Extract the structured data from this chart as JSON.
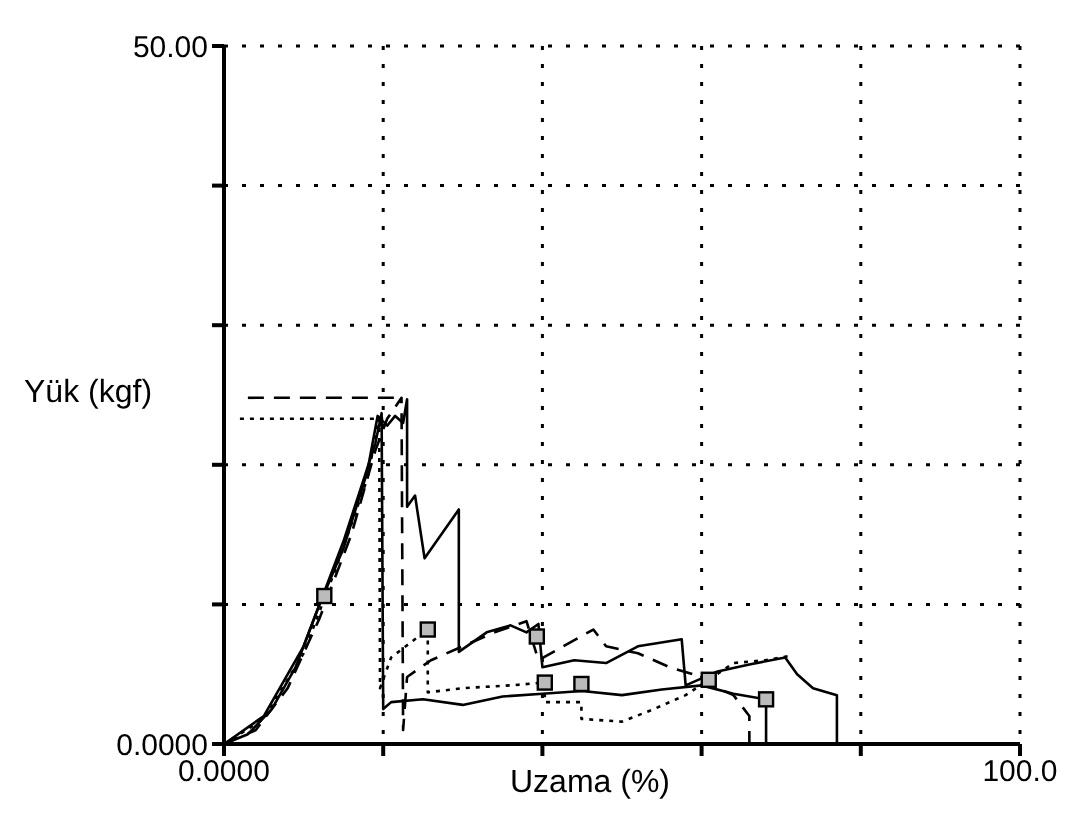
{
  "chart_data": {
    "type": "line",
    "xlabel": "Uzama (%)",
    "ylabel": "Yük (kgf)",
    "xlim": [
      0,
      100
    ],
    "ylim": [
      0,
      50
    ],
    "xticks": [
      {
        "value": 0,
        "label": "0.0000"
      },
      {
        "value": 20,
        "label": null
      },
      {
        "value": 40,
        "label": null
      },
      {
        "value": 60,
        "label": null
      },
      {
        "value": 80,
        "label": null
      },
      {
        "value": 100,
        "label": "100.0"
      }
    ],
    "yticks": [
      {
        "value": 0,
        "label": "0.0000"
      },
      {
        "value": 10,
        "label": null
      },
      {
        "value": 20,
        "label": null
      },
      {
        "value": 30,
        "label": null
      },
      {
        "value": 40,
        "label": null
      },
      {
        "value": 50,
        "label": "50.00"
      }
    ],
    "grid": true,
    "marker": "none",
    "series": [
      {
        "color": "#000000",
        "line_style": "solid",
        "x": [
          0,
          3,
          6,
          9,
          12,
          15,
          18,
          19.3,
          20.5,
          21.5,
          22.5,
          23,
          23,
          24,
          25.2,
          29.5,
          29.5,
          33,
          36,
          38,
          39.5,
          40,
          44,
          48,
          52,
          57.5,
          58,
          62,
          66,
          70.5,
          72,
          74,
          77,
          77
        ],
        "values": [
          0,
          0.7,
          2.5,
          5.5,
          10,
          14,
          19.5,
          23.5,
          22.8,
          23.5,
          23,
          24.7,
          17,
          17.8,
          13.3,
          16.8,
          6.6,
          8,
          8.5,
          8,
          8.6,
          5.5,
          6,
          5.8,
          7,
          7.5,
          4.2,
          5.2,
          5.7,
          6.2,
          5,
          4,
          3.5,
          0
        ]
      },
      {
        "color": "#000000",
        "line_style": "dashed",
        "x": [
          0,
          4,
          8,
          12,
          16,
          19,
          20.5,
          22.3,
          22.5,
          23,
          26,
          30,
          34,
          38,
          39.5,
          42,
          46.4,
          48,
          52,
          56,
          60,
          62,
          64,
          66,
          66
        ],
        "values": [
          0,
          1,
          4,
          9,
          15,
          21,
          23.3,
          24.8,
          1,
          4.8,
          6,
          7,
          8,
          8.8,
          6,
          6.8,
          8.2,
          7,
          6.5,
          5.5,
          4.8,
          4,
          3.5,
          2,
          0
        ]
      },
      {
        "color": "#000000",
        "line_style": "dotted",
        "x": [
          0,
          5,
          10,
          14,
          18,
          19.5,
          19.6,
          21,
          25.6,
          25.6,
          30,
          36,
          40.3,
          40.3,
          44.9,
          44.9,
          50,
          54,
          58,
          60.9,
          64,
          68,
          71
        ],
        "values": [
          0,
          1.8,
          6.5,
          12.5,
          19,
          23.3,
          4,
          6.2,
          8.2,
          3.7,
          4,
          4.2,
          4.4,
          3,
          3,
          1.8,
          1.6,
          2.5,
          3.5,
          4.6,
          5.8,
          6,
          6.3
        ]
      },
      {
        "color": "#000000",
        "line_style": "solid",
        "x": [
          0,
          5,
          10,
          15,
          19,
          19.8,
          20,
          21,
          25,
          30,
          35,
          40,
          45,
          50,
          55,
          60,
          64,
          68.1,
          68.1
        ],
        "values": [
          0,
          2,
          7,
          14.5,
          21.5,
          23.7,
          2.5,
          3,
          3.2,
          2.8,
          3.4,
          3.6,
          3.8,
          3.5,
          3.9,
          4.2,
          3.6,
          3.2,
          0
        ]
      },
      {
        "color": "#000000",
        "line_style": "dashed",
        "x": [
          3,
          22.5
        ],
        "values": [
          24.8,
          24.8
        ]
      },
      {
        "color": "#000000",
        "line_style": "dotted",
        "x": [
          2,
          20
        ],
        "values": [
          23.3,
          23.3
        ]
      },
      {
        "type": "scatter",
        "color": "#000000",
        "marker": "square",
        "x": [
          12.6,
          25.6,
          39.3,
          40.3,
          44.9,
          60.9,
          68.1
        ],
        "values": [
          10.6,
          8.2,
          7.7,
          4.4,
          4.3,
          4.6,
          3.2
        ]
      }
    ]
  }
}
